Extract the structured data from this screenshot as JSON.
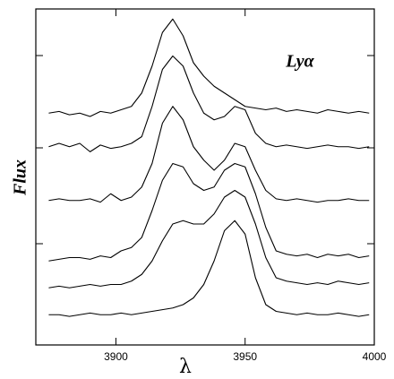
{
  "chart_data": {
    "type": "line",
    "x_label": "λ",
    "y_label": "Flux",
    "annotation": "Lyα",
    "xlim": [
      3869,
      4000
    ],
    "xticks": [
      3900,
      3950,
      4000
    ],
    "ylim": [
      0,
      100
    ],
    "color": "#000000",
    "x": [
      3874,
      3878,
      3882,
      3886,
      3890,
      3894,
      3898,
      3902,
      3906,
      3910,
      3914,
      3918,
      3922,
      3926,
      3930,
      3934,
      3938,
      3942,
      3946,
      3950,
      3954,
      3958,
      3962,
      3966,
      3970,
      3974,
      3978,
      3982,
      3986,
      3990,
      3994,
      3998
    ],
    "series": [
      {
        "values": [
          69,
          69.5,
          68.5,
          69,
          68,
          69.5,
          69,
          70,
          71,
          75,
          83,
          93,
          97,
          92,
          84,
          80,
          77,
          75,
          73,
          71,
          70.5,
          70,
          70.5,
          69.5,
          70,
          69.5,
          69,
          70,
          69.5,
          69,
          69.5,
          69
        ]
      },
      {
        "values": [
          59,
          60,
          59,
          60,
          57.5,
          59.5,
          58.5,
          59,
          60,
          62,
          71,
          82,
          86,
          83,
          75,
          69,
          67,
          68,
          71,
          70,
          63,
          60,
          59,
          59.5,
          59,
          58.5,
          59,
          59.5,
          59,
          59,
          58.5,
          59
        ]
      },
      {
        "values": [
          43,
          43.5,
          43,
          43,
          43.5,
          42.5,
          45,
          43,
          44,
          47,
          54,
          66,
          71,
          67,
          59,
          55,
          52,
          55,
          60,
          59,
          52,
          46,
          43.5,
          43,
          43.5,
          43,
          42.5,
          43,
          43,
          43.5,
          43,
          43
        ]
      },
      {
        "values": [
          25,
          25.5,
          26,
          26,
          25.5,
          26.5,
          26,
          28,
          29,
          32,
          40,
          49,
          54,
          53,
          48,
          46,
          47,
          52,
          54,
          53,
          45,
          35,
          28,
          27,
          26.5,
          27,
          26,
          27,
          26.5,
          27,
          26,
          26.5
        ]
      },
      {
        "values": [
          17,
          17.5,
          17,
          17.5,
          18,
          17.5,
          18,
          18,
          19,
          21,
          25,
          31,
          36,
          37,
          36,
          36,
          39,
          44,
          46,
          44,
          36,
          26,
          20,
          19,
          18.5,
          18,
          18.5,
          18,
          19,
          18.5,
          18,
          18.5
        ]
      },
      {
        "values": [
          9,
          9,
          8.5,
          9,
          9.5,
          9,
          9,
          9.5,
          9,
          9.5,
          10,
          10.5,
          11,
          12,
          14,
          18,
          25,
          34,
          37,
          33,
          20,
          12,
          10,
          9.5,
          9,
          9.5,
          9,
          9,
          9.5,
          9,
          8.5,
          9
        ]
      }
    ]
  }
}
